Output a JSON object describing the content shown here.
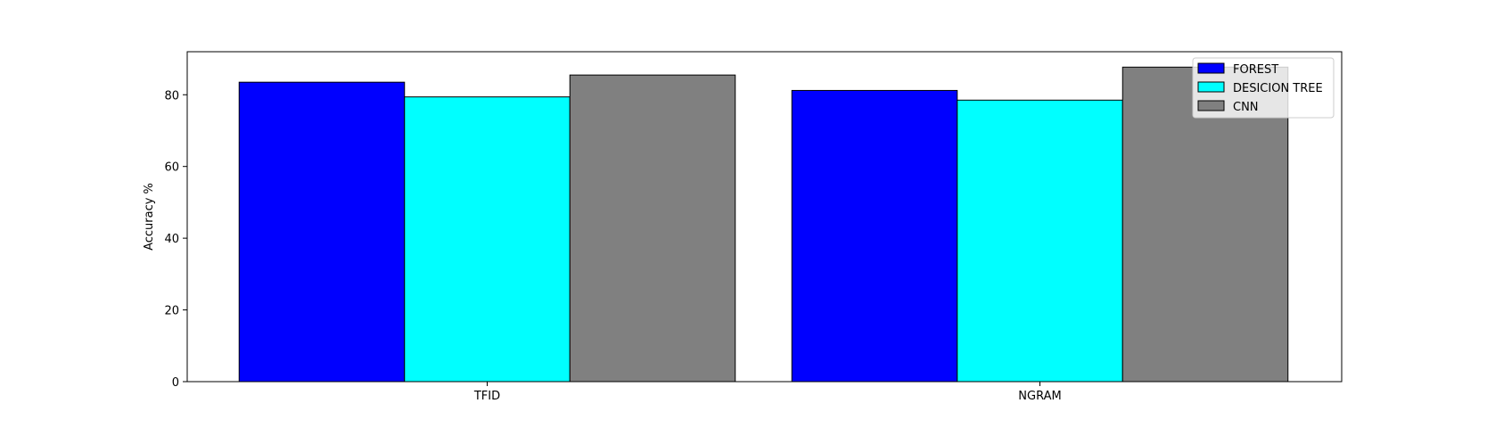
{
  "chart_data": {
    "type": "bar",
    "title": "",
    "xlabel": "",
    "ylabel": "Accuracy %",
    "categories": [
      "TFID",
      "NGRAM"
    ],
    "series": [
      {
        "name": "FOREST",
        "color": "#0000ff",
        "values": [
          83.5,
          81.2
        ]
      },
      {
        "name": "DESICION TREE",
        "color": "#00ffff",
        "values": [
          79.4,
          78.5
        ]
      },
      {
        "name": "CNN",
        "color": "#808080",
        "values": [
          85.5,
          87.7
        ]
      }
    ],
    "ylim": [
      0,
      92
    ],
    "yticks": [
      0,
      20,
      40,
      60,
      80
    ],
    "ytick_labels": [
      "0",
      "20",
      "40",
      "60",
      "80"
    ],
    "grid": false,
    "legend_position": "top-right"
  }
}
